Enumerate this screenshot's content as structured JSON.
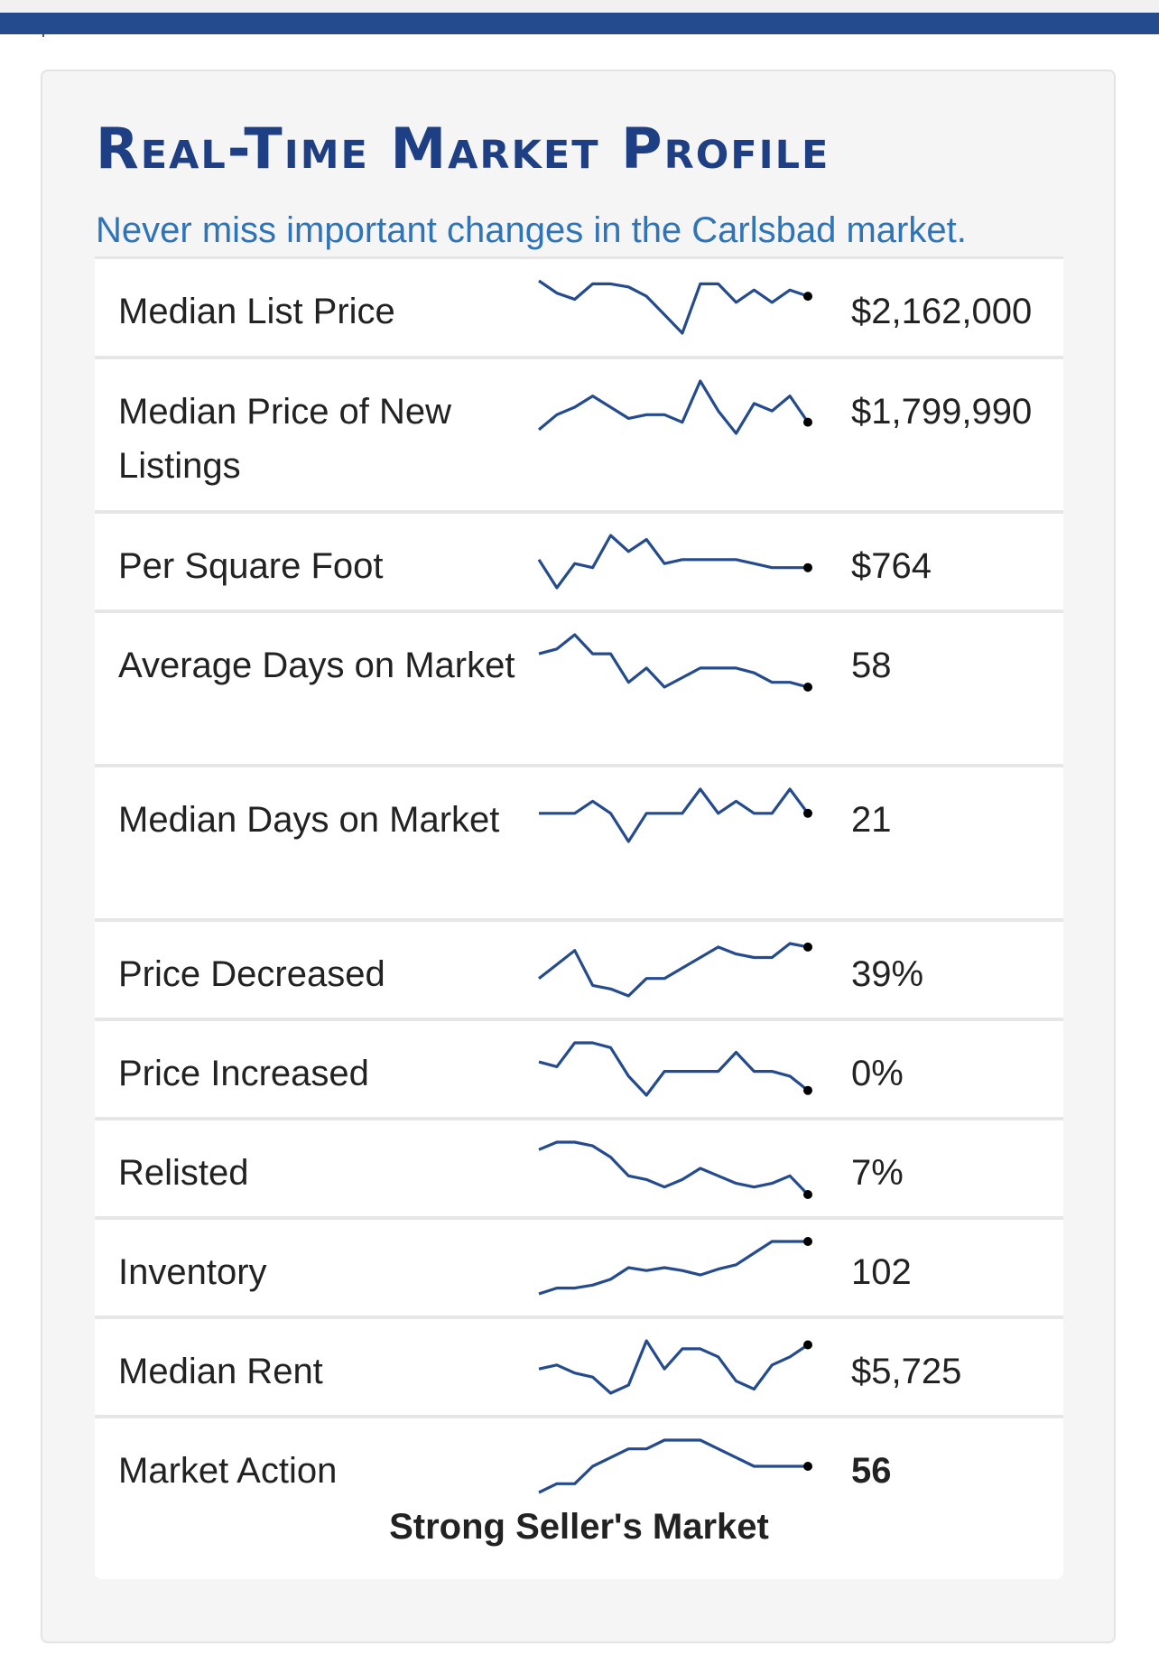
{
  "title": "Real-Time Market Profile",
  "subtitle": "Never miss important changes in the Carlsbad market.",
  "colors": {
    "accent": "#244b8e",
    "title": "#1f3f84",
    "subtitle": "#2f74b7",
    "sparkline": "#244b8e"
  },
  "rows": [
    {
      "label": "Median List Price",
      "value": "$2,162,000",
      "trend": [
        8,
        4,
        2,
        7,
        7,
        6,
        3,
        -3,
        -9,
        7,
        7,
        1,
        5,
        1,
        5,
        3
      ]
    },
    {
      "label": "Median Price of New Listings",
      "value": "$1,799,990",
      "trend": [
        -3,
        1,
        3,
        6,
        3,
        0,
        1,
        1,
        -1,
        10,
        2,
        -4,
        4,
        2,
        6,
        -1
      ]
    },
    {
      "label": "Per Square Foot",
      "value": "$764",
      "trend": [
        3,
        -4,
        2,
        1,
        9,
        5,
        8,
        2,
        3,
        3,
        3,
        3,
        2,
        1,
        1,
        1
      ]
    },
    {
      "label": "Average Days on Market",
      "value": "58",
      "trend": [
        6,
        7,
        10,
        6,
        6,
        0,
        3,
        -1,
        1,
        3,
        3,
        3,
        2,
        0,
        0,
        -1
      ]
    },
    {
      "label": "Median Days on Market",
      "value": "21",
      "trend": [
        4,
        4,
        4,
        7,
        4,
        -3,
        4,
        4,
        4,
        10,
        4,
        7,
        4,
        4,
        10,
        4
      ]
    },
    {
      "label": "Price Decreased",
      "value": "39%",
      "trend": [
        27,
        31,
        35,
        25,
        24,
        22,
        27,
        27,
        30,
        33,
        36,
        34,
        33,
        33,
        37,
        36
      ]
    },
    {
      "label": "Price Increased",
      "value": "0%",
      "trend": [
        6,
        5,
        10,
        10,
        9,
        3,
        -1,
        4,
        4,
        4,
        4,
        8,
        4,
        4,
        3,
        0
      ]
    },
    {
      "label": "Relisted",
      "value": "7%",
      "trend": [
        18,
        20,
        20,
        19,
        16,
        11,
        10,
        8,
        10,
        13,
        11,
        9,
        8,
        9,
        11,
        6
      ]
    },
    {
      "label": "Inventory",
      "value": "102",
      "trend": [
        60,
        64,
        64,
        66,
        70,
        78,
        76,
        78,
        76,
        73,
        77,
        80,
        88,
        96,
        96,
        96
      ]
    },
    {
      "label": "Median Rent",
      "value": "$5,725",
      "trend": [
        3,
        4,
        2,
        1,
        -3,
        -1,
        10,
        3,
        8,
        8,
        6,
        0,
        -2,
        4,
        6,
        9
      ]
    },
    {
      "label": "Market Action",
      "value": "56",
      "trend": [
        51,
        52,
        52,
        54,
        55,
        56,
        56,
        57,
        57,
        57,
        56,
        55,
        54,
        54,
        54,
        54
      ]
    }
  ],
  "footer": "Strong Seller's Market"
}
